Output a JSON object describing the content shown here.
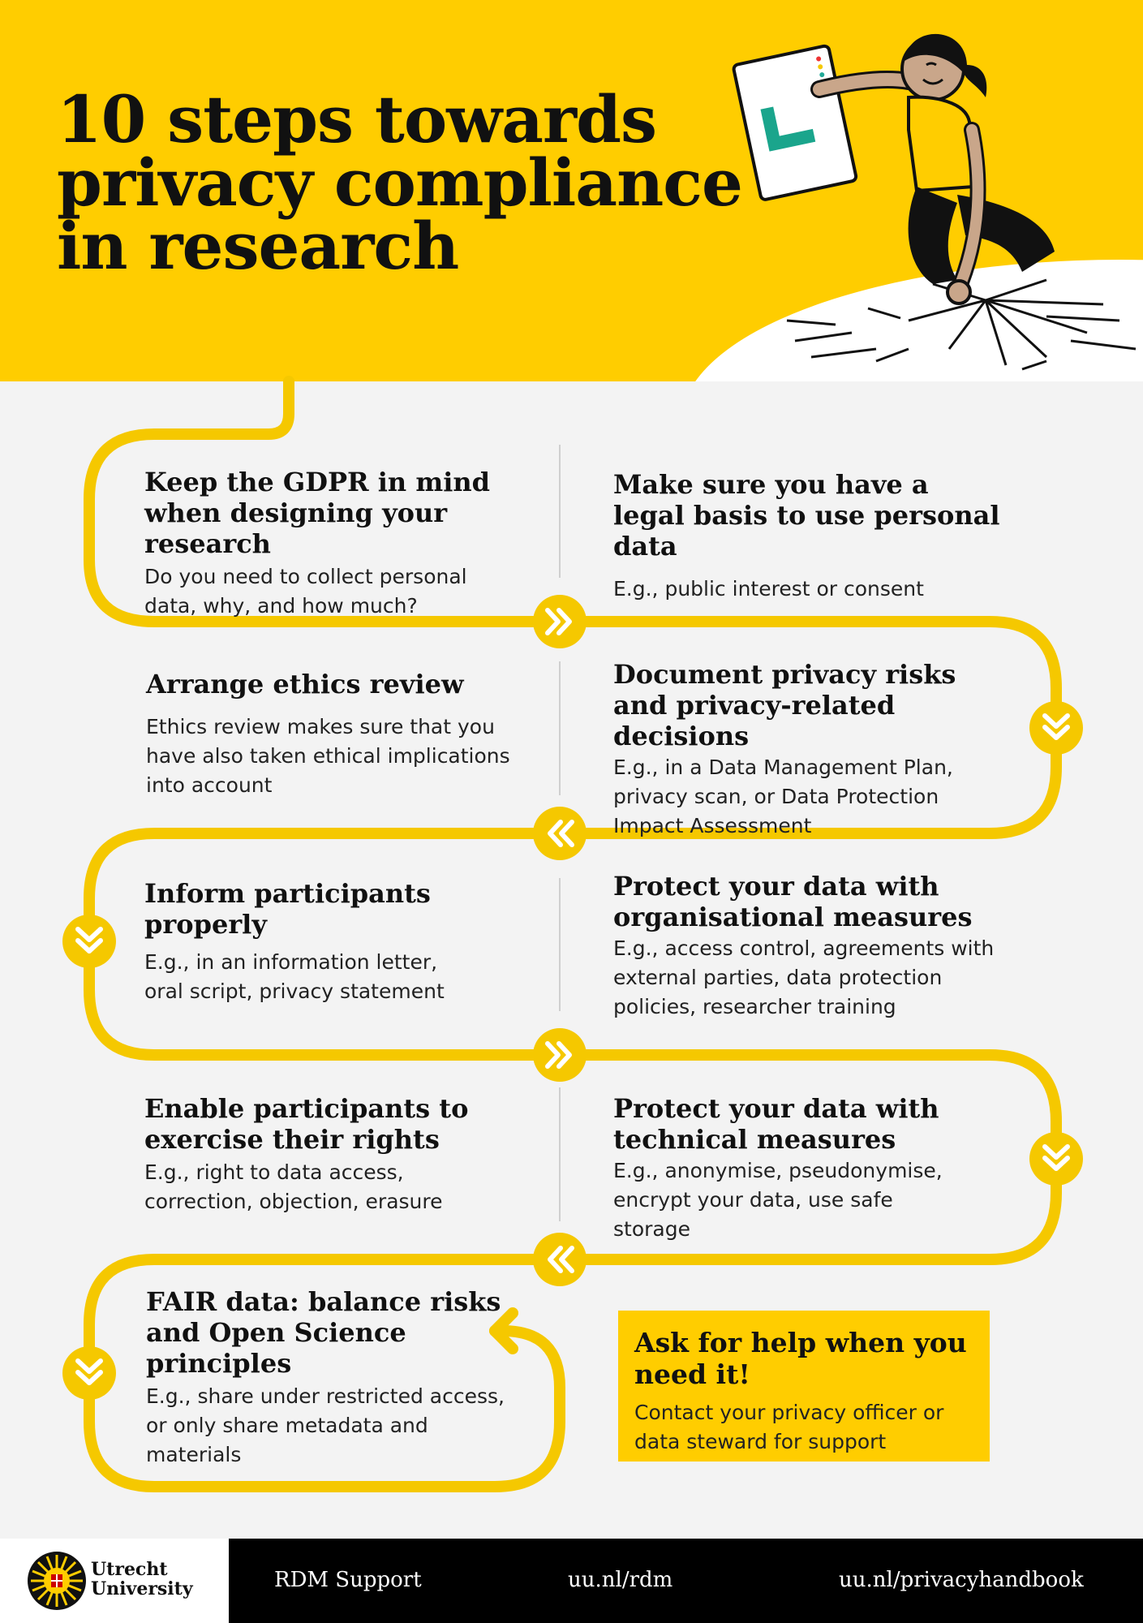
{
  "title": {
    "line1": "10 steps towards",
    "line2": "privacy compliance",
    "line3": "in research"
  },
  "steps": [
    {
      "title": "Keep the GDPR in mind when designing your research",
      "text": "Do you need to collect personal data, why, and how much?"
    },
    {
      "title": "Make sure you have a legal basis to use personal data",
      "text": "E.g., public interest or consent"
    },
    {
      "title": "Arrange ethics review",
      "text": "Ethics review makes sure that you have also taken ethical implications into account"
    },
    {
      "title": "Document privacy risks and privacy-related decisions",
      "text": "E.g., in a Data Management Plan, privacy scan, or Data Protection Impact Assessment"
    },
    {
      "title": "Inform participants properly",
      "text": "E.g., in an information letter, oral script, privacy statement"
    },
    {
      "title": "Protect your data with organisational measures",
      "text": "E.g., access control, agreements with external parties, data protection policies, researcher training"
    },
    {
      "title": "Enable participants to exercise their rights",
      "text": "E.g., right to data access, correction, objection, erasure"
    },
    {
      "title": "Protect your data with technical measures",
      "text": "E.g., anonymise, pseudonymise, encrypt your data, use safe storage"
    },
    {
      "title": "FAIR data: balance risks and Open Science principles",
      "text": "E.g., share under restricted access, or only share metadata and materials"
    }
  ],
  "help": {
    "title": "Ask for help when you need it!",
    "text": "Contact your privacy officer or data steward for support"
  },
  "footer": {
    "logo_line1": "Utrecht",
    "logo_line2": "University",
    "rdm_support": "RDM Support",
    "link_rdm": "uu.nl/rdm",
    "link_privacy": "uu.nl/privacyhandbook"
  },
  "colors": {
    "brand_yellow": "#ffcd00",
    "path_yellow": "#f5c800",
    "background": "#f3f3f3",
    "footer": "#000000"
  },
  "icons": [
    "double-chevron-right-icon",
    "double-chevron-down-icon",
    "double-chevron-left-icon",
    "u-turn-arrow-icon",
    "tablet-checkmark-icon",
    "university-seal-icon"
  ]
}
